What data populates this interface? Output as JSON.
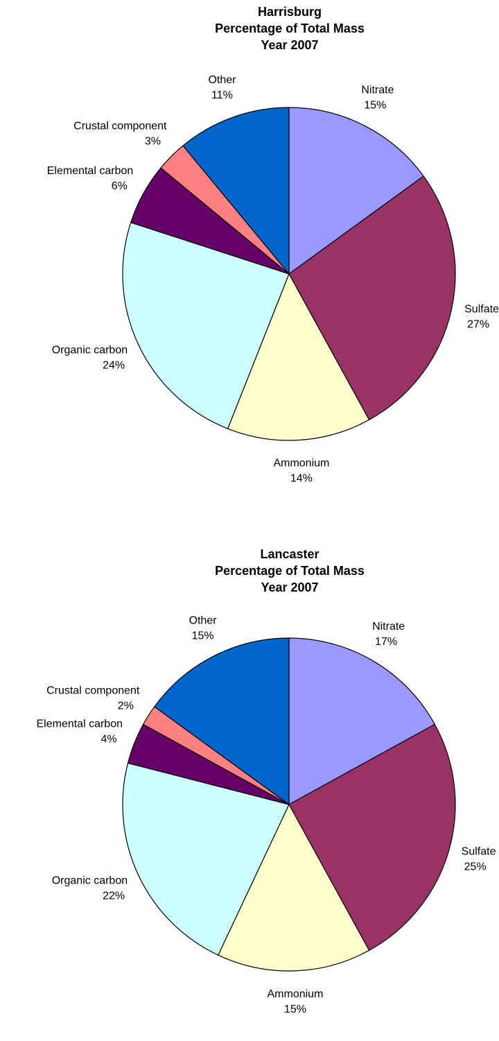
{
  "chart_data": [
    {
      "type": "pie",
      "title": [
        "Harrisburg",
        "Percentage of Total Mass",
        "Year 2007"
      ],
      "categories": [
        "Nitrate",
        "Sulfate",
        "Ammonium",
        "Organic carbon",
        "Elemental carbon",
        "Crustal component",
        "Other"
      ],
      "values": [
        15,
        27,
        14,
        24,
        6,
        3,
        11
      ],
      "value_labels": [
        "15%",
        "27%",
        "14%",
        "24%",
        "6%",
        "3%",
        "11%"
      ],
      "colors": [
        "#9999ff",
        "#993366",
        "#ffffcc",
        "#ccffff",
        "#660066",
        "#ff8080",
        "#0066cc"
      ]
    },
    {
      "type": "pie",
      "title": [
        "Lancaster",
        "Percentage of Total Mass",
        "Year 2007"
      ],
      "categories": [
        "Nitrate",
        "Sulfate",
        "Ammonium",
        "Organic carbon",
        "Elemental carbon",
        "Crustal component",
        "Other"
      ],
      "values": [
        17,
        25,
        15,
        22,
        4,
        2,
        15
      ],
      "value_labels": [
        "17%",
        "25%",
        "15%",
        "22%",
        "4%",
        "2%",
        "15%"
      ],
      "colors": [
        "#9999ff",
        "#993366",
        "#ffffcc",
        "#ccffff",
        "#660066",
        "#ff8080",
        "#0066cc"
      ]
    }
  ]
}
